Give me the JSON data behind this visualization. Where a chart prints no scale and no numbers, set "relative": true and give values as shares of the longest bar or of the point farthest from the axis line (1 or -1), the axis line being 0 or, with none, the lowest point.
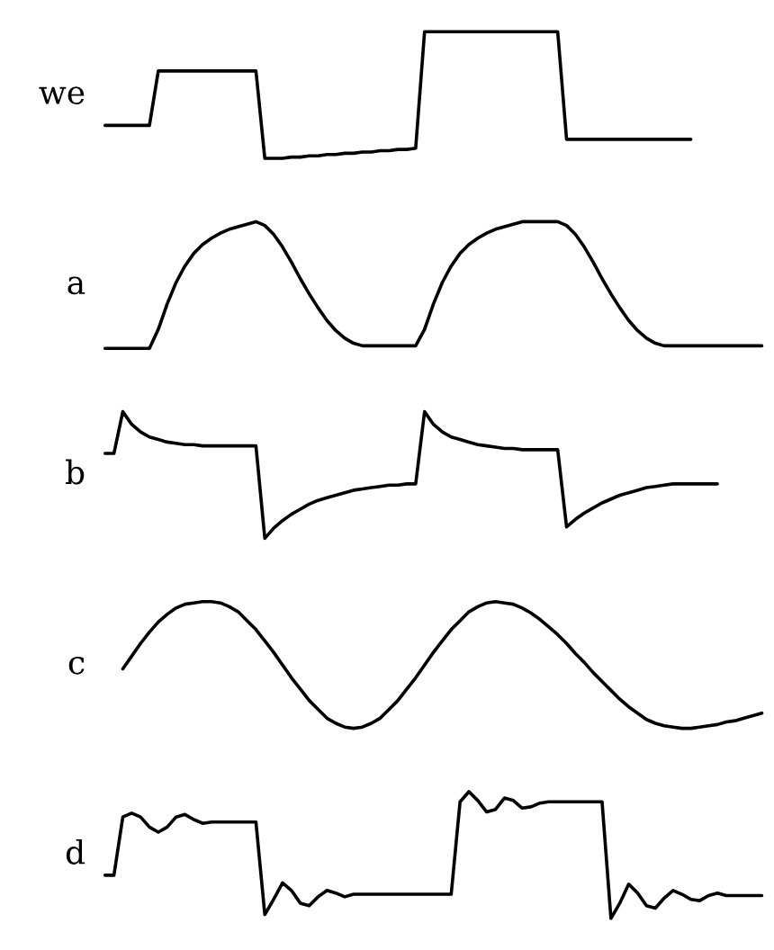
{
  "chart_data": [
    {
      "type": "line",
      "relative": true,
      "ylabel": "we",
      "color": "#000000",
      "categories": [
        null,
        null,
        null,
        null,
        null,
        null,
        null,
        null,
        null,
        null,
        null,
        null,
        null,
        null,
        null,
        null,
        null,
        null,
        null,
        null,
        null,
        null,
        null,
        null,
        null,
        null,
        null,
        null,
        null,
        null,
        null,
        null,
        null,
        null,
        null,
        null,
        null,
        null,
        null,
        null,
        null,
        null,
        null,
        null,
        null,
        null,
        null,
        null,
        null,
        null,
        null,
        null,
        null,
        null,
        null,
        null,
        null,
        null,
        null,
        null,
        null,
        null,
        null,
        null,
        null,
        null,
        null,
        null,
        null,
        null,
        null,
        null,
        null,
        null,
        null
      ],
      "values": [
        0.26,
        0.26,
        0.26,
        0.26,
        0.26,
        0.26,
        0.69,
        0.69,
        0.69,
        0.69,
        0.69,
        0.69,
        0.69,
        0.69,
        0.69,
        0.69,
        0.69,
        0.69,
        0,
        0,
        0,
        0.01,
        0.01,
        0.02,
        0.02,
        0.03,
        0.03,
        0.04,
        0.04,
        0.05,
        0.05,
        0.06,
        0.06,
        0.07,
        0.07,
        0.08,
        1,
        1,
        1,
        1,
        1,
        1,
        1,
        1,
        1,
        1,
        1,
        1,
        1,
        1,
        1,
        1,
        0.15,
        0.15,
        0.15,
        0.15,
        0.15,
        0.15,
        0.15,
        0.15,
        0.15,
        0.15,
        0.15,
        0.15,
        0.15,
        0.15,
        0.15,
        null,
        null,
        null,
        null,
        null,
        null,
        null,
        null
      ]
    },
    {
      "type": "line",
      "relative": true,
      "ylabel": "a",
      "color": "#000000",
      "categories": [
        null,
        null,
        null,
        null,
        null,
        null,
        null,
        null,
        null,
        null,
        null,
        null,
        null,
        null,
        null,
        null,
        null,
        null,
        null,
        null,
        null,
        null,
        null,
        null,
        null,
        null,
        null,
        null,
        null,
        null,
        null,
        null,
        null,
        null,
        null,
        null,
        null,
        null,
        null,
        null,
        null,
        null,
        null,
        null,
        null,
        null,
        null,
        null,
        null,
        null,
        null,
        null,
        null,
        null,
        null,
        null,
        null,
        null,
        null,
        null,
        null,
        null,
        null,
        null,
        null,
        null,
        null,
        null,
        null,
        null,
        null,
        null,
        null,
        null,
        null
      ],
      "values": [
        0,
        0,
        0,
        0,
        0,
        0,
        0.15,
        0.35,
        0.52,
        0.65,
        0.75,
        0.82,
        0.87,
        0.91,
        0.94,
        0.96,
        0.98,
        1,
        0.97,
        0.9,
        0.8,
        0.68,
        0.55,
        0.43,
        0.32,
        0.22,
        0.14,
        0.08,
        0.04,
        0.02,
        0.02,
        0.02,
        0.02,
        0.02,
        0.02,
        0.02,
        0.15,
        0.35,
        0.52,
        0.65,
        0.75,
        0.82,
        0.87,
        0.91,
        0.94,
        0.96,
        0.98,
        1,
        1,
        1,
        1,
        1,
        0.97,
        0.9,
        0.8,
        0.68,
        0.55,
        0.43,
        0.32,
        0.22,
        0.14,
        0.08,
        0.04,
        0.02,
        0.02,
        0.02,
        0.02,
        0.02,
        0.02,
        0.02,
        0.02,
        0.02,
        0.02,
        0.02,
        0.02
      ]
    },
    {
      "type": "line",
      "relative": true,
      "ylabel": "b",
      "color": "#000000",
      "categories": [
        null,
        null,
        null,
        null,
        null,
        null,
        null,
        null,
        null,
        null,
        null,
        null,
        null,
        null,
        null,
        null,
        null,
        null,
        null,
        null,
        null,
        null,
        null,
        null,
        null,
        null,
        null,
        null,
        null,
        null,
        null,
        null,
        null,
        null,
        null,
        null,
        null,
        null,
        null,
        null,
        null,
        null,
        null,
        null,
        null,
        null,
        null,
        null,
        null,
        null,
        null,
        null,
        null,
        null,
        null,
        null,
        null,
        null,
        null,
        null,
        null,
        null,
        null,
        null,
        null,
        null,
        null,
        null,
        null,
        null,
        null,
        null,
        null,
        null,
        null
      ],
      "values": [
        0.67,
        0.67,
        1,
        0.9,
        0.84,
        0.8,
        0.78,
        0.76,
        0.75,
        0.74,
        0.74,
        0.73,
        0.73,
        0.73,
        0.73,
        0.73,
        0.73,
        0.73,
        0,
        0.08,
        0.14,
        0.19,
        0.23,
        0.27,
        0.3,
        0.32,
        0.34,
        0.36,
        0.38,
        0.39,
        0.4,
        0.41,
        0.42,
        0.42,
        0.43,
        0.43,
        1,
        0.9,
        0.84,
        0.8,
        0.78,
        0.76,
        0.74,
        0.73,
        0.72,
        0.71,
        0.71,
        0.7,
        0.7,
        0.7,
        0.7,
        0.7,
        0.09,
        0.15,
        0.2,
        0.24,
        0.28,
        0.31,
        0.34,
        0.36,
        0.38,
        0.4,
        0.41,
        0.42,
        0.43,
        0.43,
        0.43,
        0.43,
        0.43,
        0.43,
        null,
        null,
        null,
        null,
        null
      ]
    },
    {
      "type": "line",
      "relative": true,
      "ylabel": "c",
      "color": "#000000",
      "categories": [
        null,
        null,
        null,
        null,
        null,
        null,
        null,
        null,
        null,
        null,
        null,
        null,
        null,
        null,
        null,
        null,
        null,
        null,
        null,
        null,
        null,
        null,
        null,
        null,
        null,
        null,
        null,
        null,
        null,
        null,
        null,
        null,
        null,
        null,
        null,
        null,
        null,
        null,
        null,
        null,
        null,
        null,
        null,
        null,
        null,
        null,
        null,
        null,
        null,
        null,
        null,
        null,
        null,
        null,
        null,
        null,
        null,
        null,
        null,
        null,
        null,
        null,
        null,
        null,
        null,
        null,
        null,
        null,
        null,
        null,
        null,
        null,
        null,
        null,
        null
      ],
      "values": [
        null,
        null,
        0.47,
        0.57,
        0.67,
        0.76,
        0.84,
        0.9,
        0.95,
        0.98,
        0.99,
        1,
        1,
        0.99,
        0.96,
        0.92,
        0.85,
        0.78,
        0.69,
        0.6,
        0.5,
        0.4,
        0.31,
        0.22,
        0.15,
        0.08,
        0.04,
        0.01,
        0,
        0.01,
        0.04,
        0.08,
        0.15,
        0.22,
        0.31,
        0.4,
        0.5,
        0.6,
        0.69,
        0.78,
        0.85,
        0.92,
        0.96,
        0.99,
        1,
        0.99,
        0.98,
        0.95,
        0.91,
        0.86,
        0.8,
        0.74,
        0.67,
        0.59,
        0.52,
        0.44,
        0.37,
        0.3,
        0.23,
        0.17,
        0.12,
        0.07,
        0.04,
        0.02,
        0.01,
        0,
        0,
        0.01,
        0.02,
        0.03,
        0.05,
        0.06,
        0.08,
        0.1,
        0.12
      ]
    },
    {
      "type": "line",
      "relative": true,
      "ylabel": "d",
      "color": "#000000",
      "categories": [
        null,
        null,
        null,
        null,
        null,
        null,
        null,
        null,
        null,
        null,
        null,
        null,
        null,
        null,
        null,
        null,
        null,
        null,
        null,
        null,
        null,
        null,
        null,
        null,
        null,
        null,
        null,
        null,
        null,
        null,
        null,
        null,
        null,
        null,
        null,
        null,
        null,
        null,
        null,
        null,
        null,
        null,
        null,
        null,
        null,
        null,
        null,
        null,
        null,
        null,
        null,
        null,
        null,
        null,
        null,
        null,
        null,
        null,
        null,
        null,
        null,
        null,
        null,
        null,
        null,
        null,
        null,
        null,
        null,
        null,
        null,
        null,
        null,
        null,
        null
      ],
      "values": [
        0.34,
        0.34,
        0.8,
        0.83,
        0.8,
        0.72,
        0.68,
        0.72,
        0.8,
        0.82,
        0.78,
        0.75,
        0.76,
        0.76,
        0.76,
        0.76,
        0.76,
        0.76,
        0.03,
        0.15,
        0.28,
        0.22,
        0.12,
        0.1,
        0.17,
        0.22,
        0.2,
        0.17,
        0.19,
        0.19,
        0.19,
        0.19,
        0.19,
        0.19,
        0.19,
        0.19,
        0.19,
        0.19,
        0.19,
        0.19,
        0.92,
        1,
        0.93,
        0.84,
        0.86,
        0.95,
        0.93,
        0.87,
        0.88,
        0.91,
        0.92,
        0.92,
        0.92,
        0.92,
        0.92,
        0.92,
        0.92,
        0,
        0.12,
        0.27,
        0.2,
        0.1,
        0.08,
        0.16,
        0.22,
        0.19,
        0.15,
        0.14,
        0.18,
        0.2,
        0.18,
        0.18,
        0.18,
        0.18,
        0.18
      ]
    }
  ]
}
